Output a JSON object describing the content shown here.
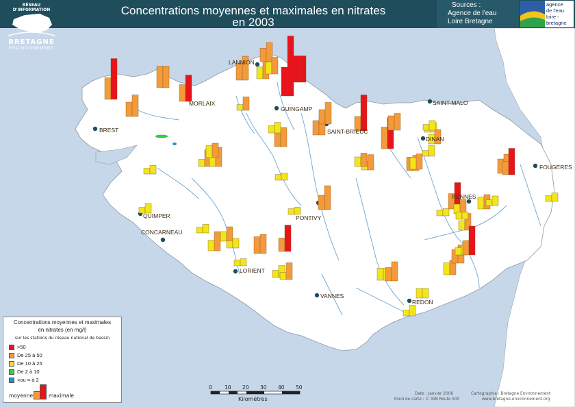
{
  "header": {
    "network_label": "RÉSEAU D'INFORMATION",
    "region_name": "BRETAGNE",
    "region_sub": "ENVIRONNEMENT",
    "title_line1": "Concentrations moyennes et maximales en nitrates",
    "title_line2": "en 2003"
  },
  "sources": {
    "label": "Sources :",
    "line1": "Agence de l'eau",
    "line2": "Loire Bretagne",
    "logo_lines": [
      "agence",
      "de l'eau",
      "loire -",
      "bretagne"
    ]
  },
  "colors": {
    "gt50": "#e8141b",
    "c25_50": "#f59a3a",
    "c10_25": "#f2e61a",
    "c2_10": "#2fd33c",
    "lt2": "#2a8fc1",
    "land": "#ffffff",
    "sea": "#c7d7ea",
    "river": "#6aa4cf",
    "header": "#1f4d5c"
  },
  "cities": [
    {
      "name": "LANNION"
    },
    {
      "name": "MORLAIX"
    },
    {
      "name": "GUINGAMP"
    },
    {
      "name": "SAINT-MALO"
    },
    {
      "name": "BREST"
    },
    {
      "name": "SAINT-BRIEUC"
    },
    {
      "name": "DINAN"
    },
    {
      "name": "FOUGERES"
    },
    {
      "name": "QUIMPER"
    },
    {
      "name": "PONTIVY"
    },
    {
      "name": "RENNES"
    },
    {
      "name": "CONCARNEAU"
    },
    {
      "name": "LORIENT"
    },
    {
      "name": "VANNES"
    },
    {
      "name": "REDON"
    }
  ],
  "stations": [
    {
      "mean": 45,
      "max": 85
    },
    {
      "mean": 30,
      "max": 45
    },
    {
      "mean": 45,
      "max": 45
    },
    {
      "mean": 35,
      "max": 55
    },
    {
      "mean": 35,
      "max": 50
    },
    {
      "mean": 28,
      "max": 40
    },
    {
      "mean": 60,
      "max": 125
    },
    {
      "mean": 35,
      "max": 40
    },
    {
      "mean": 55,
      "max": 55
    },
    {
      "mean": 12,
      "max": 28
    },
    {
      "mean": 30,
      "max": 40
    },
    {
      "mean": 30,
      "max": 45
    },
    {
      "mean": 30,
      "max": 75
    },
    {
      "mean": 45,
      "max": 65
    },
    {
      "mean": 15,
      "max": 20
    },
    {
      "mean": 30,
      "max": 35
    },
    {
      "mean": 18,
      "max": 32
    },
    {
      "mean": 12,
      "max": 22
    },
    {
      "mean": 28,
      "max": 32
    },
    {
      "mean": 30,
      "max": 40
    },
    {
      "mean": 12,
      "max": 18
    },
    {
      "mean": 15,
      "max": 35
    },
    {
      "mean": 25,
      "max": 40
    },
    {
      "mean": 12,
      "max": 20
    },
    {
      "mean": 12,
      "max": 18
    },
    {
      "mean": 22,
      "max": 40
    },
    {
      "mean": 20,
      "max": 30
    },
    {
      "mean": 35,
      "max": 40
    },
    {
      "mean": 28,
      "max": 55
    },
    {
      "mean": 30,
      "max": 50
    },
    {
      "mean": 12,
      "max": 15
    },
    {
      "mean": 12,
      "max": 15
    },
    {
      "mean": 15,
      "max": 20
    },
    {
      "mean": 12,
      "max": 15
    },
    {
      "mean": 15,
      "max": 25
    },
    {
      "mean": 15,
      "max": 35
    },
    {
      "mean": 20,
      "max": 20
    },
    {
      "mean": 12,
      "max": 22
    },
    {
      "mean": 25,
      "max": 25
    },
    {
      "mean": 28,
      "max": 40
    },
    {
      "mean": 25,
      "max": 30
    },
    {
      "mean": 28,
      "max": 38
    },
    {
      "mean": 15,
      "max": 20
    },
    {
      "mean": 20,
      "max": 35
    },
    {
      "mean": 12,
      "max": 15
    },
    {
      "mean": 12,
      "max": 18
    },
    {
      "mean": 32,
      "max": 55
    },
    {
      "mean": 20,
      "max": 30
    },
    {
      "mean": 30,
      "max": 60
    },
    {
      "mean": 15,
      "max": 15
    },
    {
      "mean": 25,
      "max": 30
    },
    {
      "mean": 28,
      "max": 55
    },
    {
      "mean": 25,
      "max": 32
    },
    {
      "mean": 20,
      "max": 30
    },
    {
      "mean": 20,
      "max": 28
    },
    {
      "mean": 12,
      "max": 20
    },
    {
      "mean": 25,
      "max": 35
    },
    {
      "mean": 25,
      "max": 35
    },
    {
      "mean": 15,
      "max": 22
    },
    {
      "mean": 25,
      "max": 30
    },
    {
      "mean": 12,
      "max": 20
    }
  ],
  "legend": {
    "title_line1": "Concentrations moyennes et maximales",
    "title_line2": "en nitrates (en mg/l)",
    "subtitle": "sur les stations du réseau national de bassin",
    "classes": [
      {
        "label": ">50",
        "color": "#e8141b"
      },
      {
        "label": "De 25 à 50",
        "color": "#f59a3a"
      },
      {
        "label": "De 10 à 25",
        "color": "#f2e61a"
      },
      {
        "label": "De 2 à 10",
        "color": "#2fd33c"
      },
      {
        "label": "<ou = à 2",
        "color": "#2a8fc1"
      }
    ],
    "mean_label": "moyenne",
    "max_label": "maximale"
  },
  "scale": {
    "ticks": [
      "0",
      "10",
      "20",
      "30",
      "40",
      "50"
    ],
    "unit": "Kilomètres"
  },
  "credits": {
    "date": "Date : Janvier 2006",
    "basemap": "Fond de carte : © IGN Route 500",
    "cartography": "Cartographie : Bretagne Environnement",
    "website": "www.bretagne-environnement.org"
  }
}
